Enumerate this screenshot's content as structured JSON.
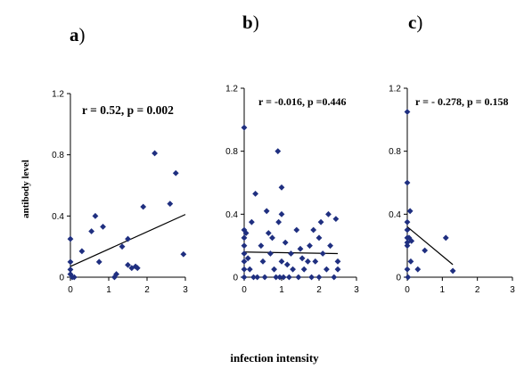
{
  "figure": {
    "ylabel": "antibody level",
    "xlabel": "infection intensity",
    "point_color": "#1f2f80"
  },
  "chart_data": [
    {
      "type": "scatter",
      "panel": "a",
      "panel_paren": ")",
      "annotation": "r = 0.52, p = 0.002",
      "xlim": [
        0,
        3
      ],
      "ylim": [
        0,
        1.2
      ],
      "xticks": [
        0,
        1,
        2,
        3
      ],
      "yticks": [
        0,
        0.4,
        0.8,
        1.2
      ],
      "ytick_labels": [
        "0",
        "0.4",
        "0.8",
        "1.2"
      ],
      "grid": false,
      "points": [
        [
          0,
          0.25
        ],
        [
          0,
          0.1
        ],
        [
          0,
          0.05
        ],
        [
          0,
          0.02
        ],
        [
          0.05,
          0.0
        ],
        [
          0.1,
          0.0
        ],
        [
          0.3,
          0.17
        ],
        [
          0.55,
          0.3
        ],
        [
          0.65,
          0.4
        ],
        [
          0.75,
          0.1
        ],
        [
          0.85,
          0.33
        ],
        [
          1.15,
          0.0
        ],
        [
          1.2,
          0.02
        ],
        [
          1.35,
          0.2
        ],
        [
          1.5,
          0.08
        ],
        [
          1.6,
          0.06
        ],
        [
          1.7,
          0.07
        ],
        [
          1.75,
          0.06
        ],
        [
          1.5,
          0.25
        ],
        [
          1.9,
          0.46
        ],
        [
          2.2,
          0.81
        ],
        [
          2.6,
          0.48
        ],
        [
          2.75,
          0.68
        ],
        [
          2.95,
          0.15
        ]
      ],
      "trendline": [
        [
          0,
          0.07
        ],
        [
          3,
          0.41
        ]
      ]
    },
    {
      "type": "scatter",
      "panel": "b",
      "panel_paren": ")",
      "annotation": "r = -0.016, p =0.446",
      "xlim": [
        0,
        3
      ],
      "ylim": [
        0,
        1.2
      ],
      "xticks": [
        0,
        1,
        2,
        3
      ],
      "yticks": [
        0,
        0.4,
        0.8,
        1.2
      ],
      "ytick_labels": [
        "0",
        "0.4",
        "0.8",
        "1.2"
      ],
      "grid": false,
      "points": [
        [
          0,
          0.95
        ],
        [
          0,
          0.3
        ],
        [
          0,
          0.25
        ],
        [
          0,
          0.2
        ],
        [
          0,
          0.15
        ],
        [
          0,
          0.1
        ],
        [
          0,
          0.05
        ],
        [
          0,
          0.0
        ],
        [
          0.05,
          0.28
        ],
        [
          0.1,
          0.12
        ],
        [
          0.15,
          0.05
        ],
        [
          0.2,
          0.35
        ],
        [
          0.25,
          0.0
        ],
        [
          0.3,
          0.53
        ],
        [
          0.35,
          0.0
        ],
        [
          0.45,
          0.2
        ],
        [
          0.5,
          0.1
        ],
        [
          0.55,
          0.0
        ],
        [
          0.6,
          0.42
        ],
        [
          0.65,
          0.28
        ],
        [
          0.7,
          0.15
        ],
        [
          0.75,
          0.25
        ],
        [
          0.8,
          0.05
        ],
        [
          0.85,
          0.0
        ],
        [
          0.9,
          0.8
        ],
        [
          0.92,
          0.35
        ],
        [
          0.95,
          0.0
        ],
        [
          1.0,
          0.57
        ],
        [
          1.0,
          0.4
        ],
        [
          1.0,
          0.1
        ],
        [
          1.05,
          0.0
        ],
        [
          1.1,
          0.22
        ],
        [
          1.15,
          0.08
        ],
        [
          1.2,
          0.0
        ],
        [
          1.25,
          0.15
        ],
        [
          1.3,
          0.05
        ],
        [
          1.4,
          0.3
        ],
        [
          1.45,
          0.0
        ],
        [
          1.5,
          0.18
        ],
        [
          1.55,
          0.12
        ],
        [
          1.6,
          0.05
        ],
        [
          1.7,
          0.1
        ],
        [
          1.75,
          0.2
        ],
        [
          1.8,
          0.0
        ],
        [
          1.85,
          0.3
        ],
        [
          1.9,
          0.1
        ],
        [
          2.0,
          0.25
        ],
        [
          2.0,
          0.0
        ],
        [
          2.05,
          0.35
        ],
        [
          2.1,
          0.15
        ],
        [
          2.2,
          0.05
        ],
        [
          2.25,
          0.4
        ],
        [
          2.3,
          0.2
        ],
        [
          2.4,
          0.0
        ],
        [
          2.45,
          0.37
        ],
        [
          2.5,
          0.1
        ],
        [
          2.5,
          0.05
        ]
      ],
      "trendline": [
        [
          0,
          0.16
        ],
        [
          2.5,
          0.15
        ]
      ]
    },
    {
      "type": "scatter",
      "panel": "c",
      "panel_paren": ")",
      "annotation": "r = - 0.278, p = 0.158",
      "xlim": [
        0,
        3
      ],
      "ylim": [
        0,
        1.2
      ],
      "xticks": [
        0,
        1,
        2,
        3
      ],
      "yticks": [
        0,
        0.4,
        0.8,
        1.2
      ],
      "ytick_labels": [
        "0",
        "0.4",
        "0.8",
        "1.2"
      ],
      "grid": false,
      "points": [
        [
          0,
          1.05
        ],
        [
          0,
          0.6
        ],
        [
          0,
          0.35
        ],
        [
          0,
          0.3
        ],
        [
          0,
          0.25
        ],
        [
          0,
          0.22
        ],
        [
          0,
          0.2
        ],
        [
          0,
          0.05
        ],
        [
          0.02,
          0.0
        ],
        [
          0.05,
          0.25
        ],
        [
          0.08,
          0.42
        ],
        [
          0.1,
          0.1
        ],
        [
          0.12,
          0.23
        ],
        [
          0.3,
          0.05
        ],
        [
          0.5,
          0.17
        ],
        [
          1.1,
          0.25
        ],
        [
          1.3,
          0.04
        ]
      ],
      "trendline": [
        [
          0,
          0.32
        ],
        [
          1.3,
          0.08
        ]
      ]
    }
  ]
}
